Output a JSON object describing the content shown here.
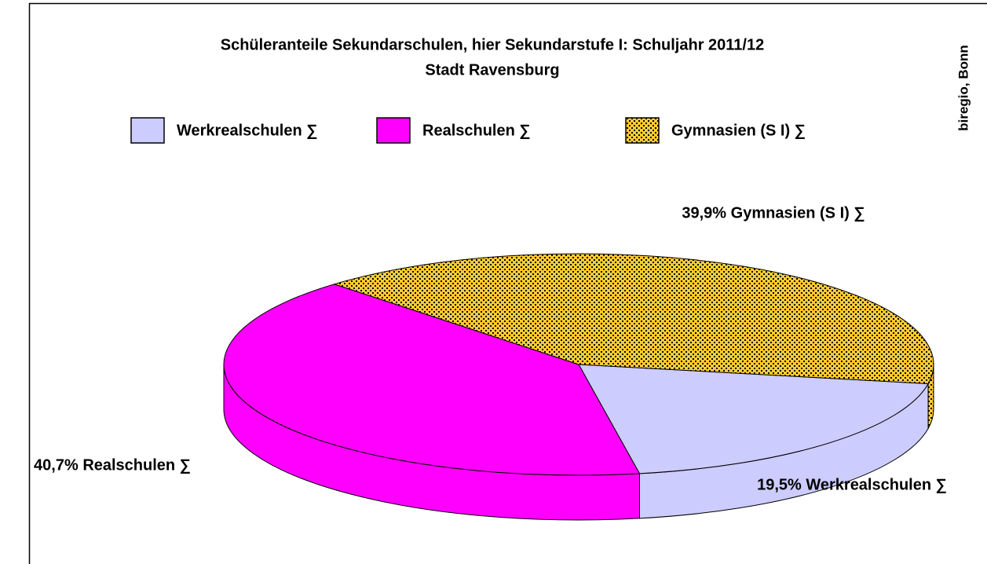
{
  "chart_data": {
    "type": "pie3d",
    "title": "Schüleranteile Sekundarschulen, hier Sekundarstufe I: Schuljahr 2011/12",
    "subtitle": "Stadt Ravensburg",
    "source": "biregio, Bonn",
    "categories": [
      "Werkrealschulen ∑",
      "Realschulen ∑",
      "Gymnasien (S I) ∑"
    ],
    "values": [
      19.5,
      40.7,
      39.9
    ],
    "value_labels": [
      "19,5% Werkrealschulen ∑",
      "40,7% Realschulen ∑",
      "39,9% Gymnasien (S I) ∑"
    ],
    "colors": [
      "#ccccff",
      "#ff00ff",
      "#ffcc33"
    ],
    "fill_patterns": [
      "solid",
      "solid",
      "dots"
    ],
    "legend": "top"
  }
}
